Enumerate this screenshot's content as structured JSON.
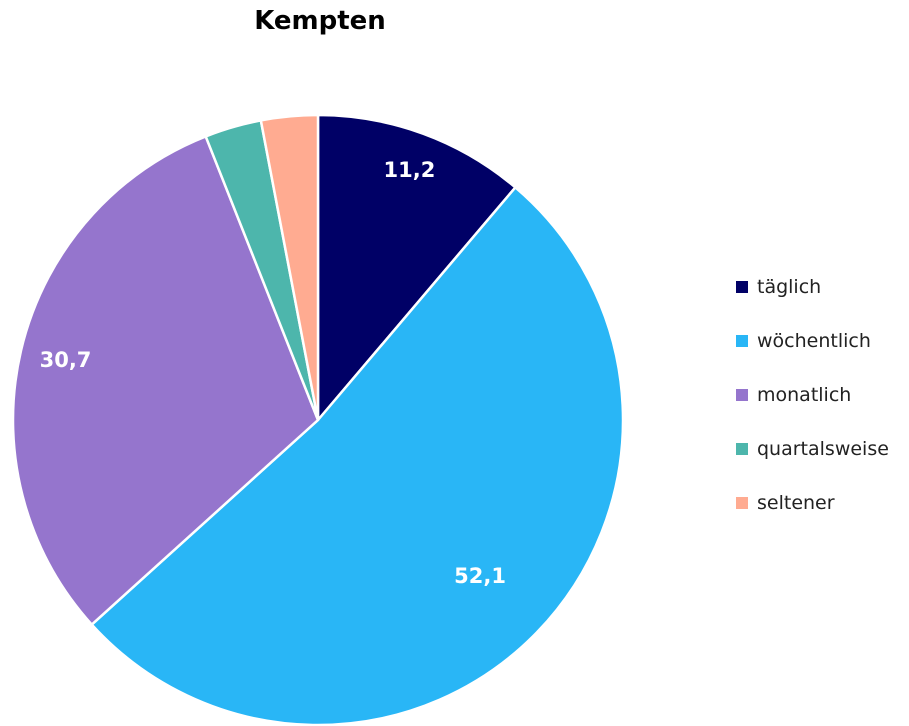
{
  "chart_data": {
    "type": "pie",
    "title": "Kempten",
    "slices": [
      {
        "name": "täglich",
        "value": 11.2,
        "color": "#000066",
        "label": "11,2"
      },
      {
        "name": "wöchentlich",
        "value": 52.1,
        "color": "#29b6f6",
        "label": "52,1"
      },
      {
        "name": "monatlich",
        "value": 30.7,
        "color": "#9575cd",
        "label": "30,7"
      },
      {
        "name": "quartalsweise",
        "value": 3.0,
        "color": "#4db6ac",
        "label": ""
      },
      {
        "name": "seltener",
        "value": 3.0,
        "color": "#ffab91",
        "label": ""
      }
    ],
    "legend_position": "right",
    "start_angle": "12 o'clock, clockwise"
  }
}
